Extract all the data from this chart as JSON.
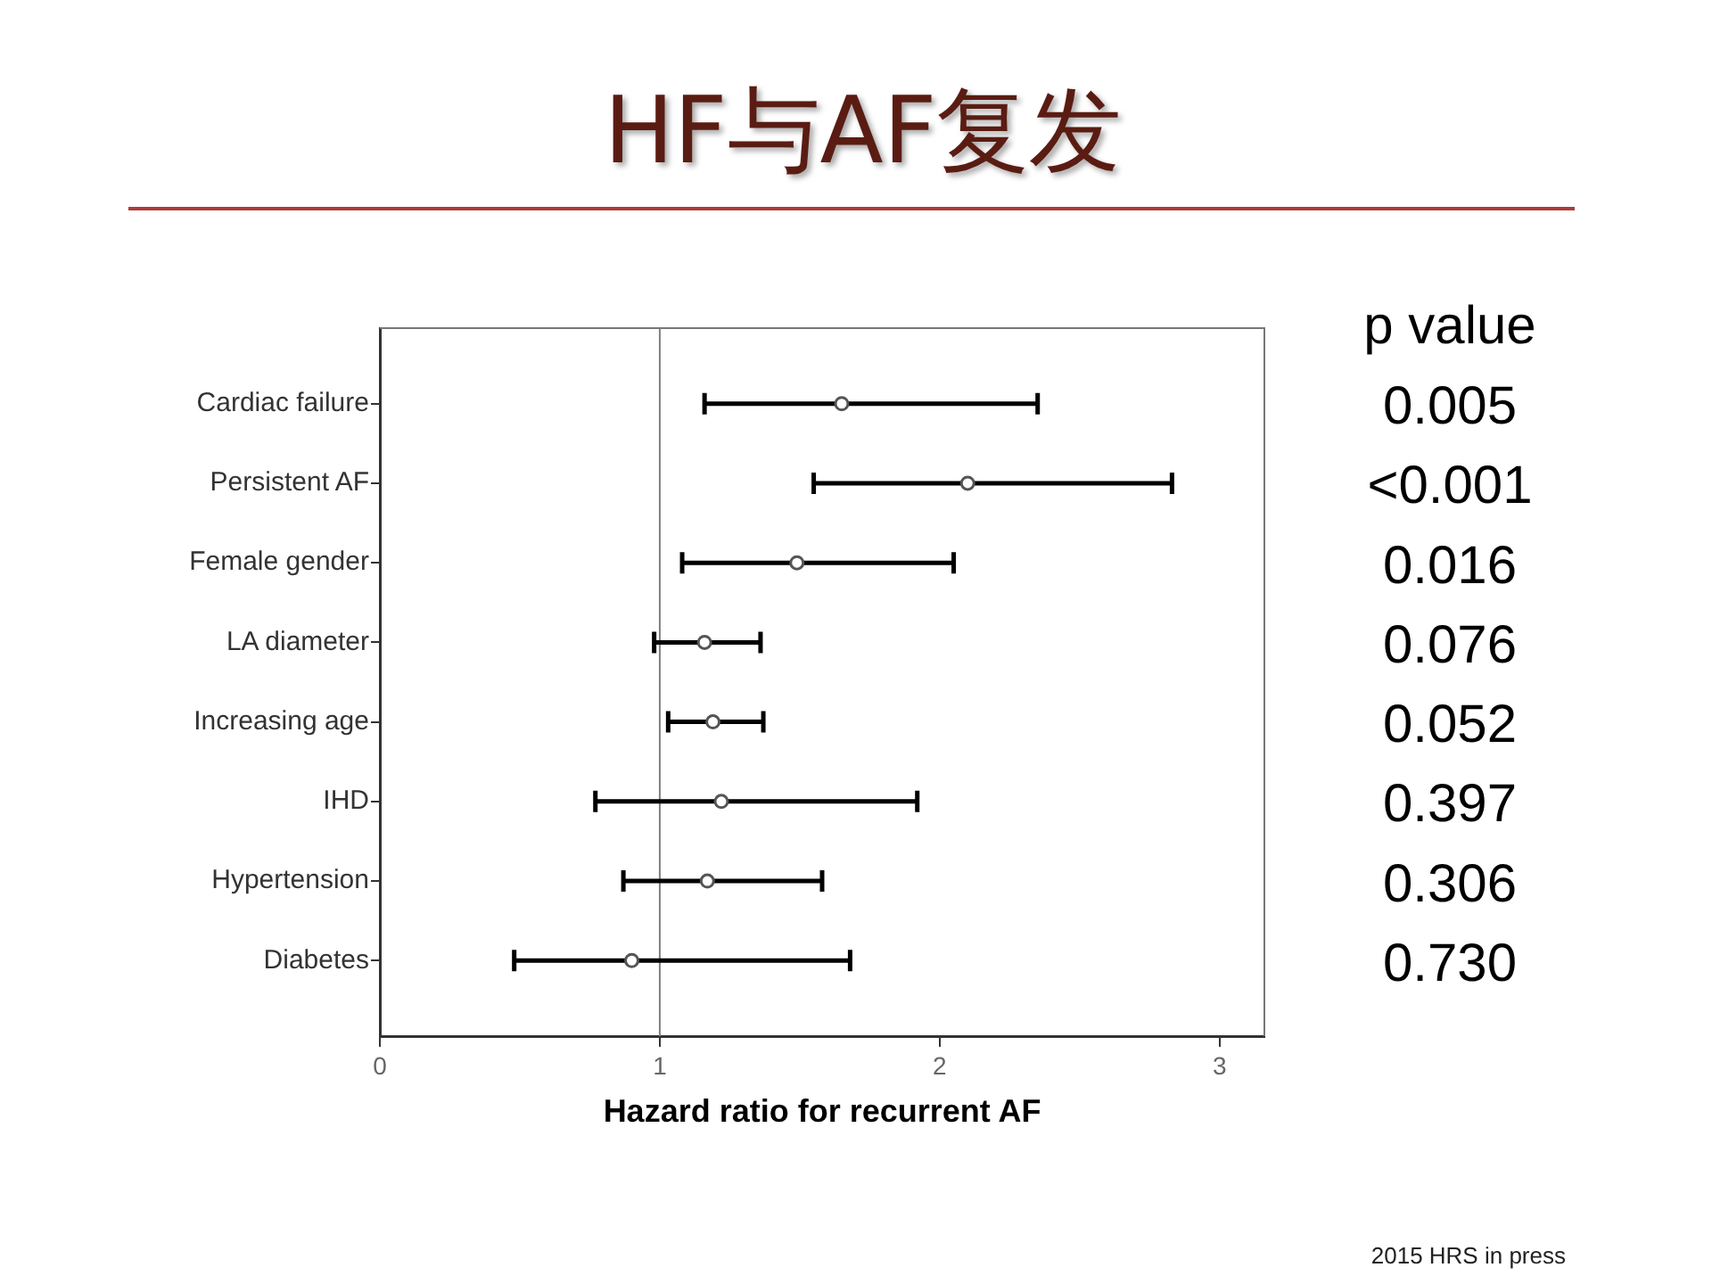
{
  "chart_data": {
    "type": "scatter",
    "orientation": "horizontal",
    "title": "HF与AF复发",
    "xlabel": "Hazard ratio for recurrent AF",
    "categories": [
      "Cardiac failure",
      "Persistent AF",
      "Female gender",
      "LA diameter",
      "Increasing age",
      "IHD",
      "Hypertension",
      "Diabetes"
    ],
    "values": [
      1.65,
      2.1,
      1.49,
      1.16,
      1.19,
      1.22,
      1.17,
      0.9
    ],
    "errors": [
      [
        1.16,
        2.35
      ],
      [
        1.55,
        2.83
      ],
      [
        1.08,
        2.05
      ],
      [
        0.98,
        1.36
      ],
      [
        1.03,
        1.37
      ],
      [
        0.77,
        1.92
      ],
      [
        0.87,
        1.58
      ],
      [
        0.48,
        1.68
      ]
    ],
    "color": "#555555",
    "marker": "circle",
    "xlim": [
      0,
      3.16
    ],
    "xticks": [
      0,
      1,
      2,
      3
    ],
    "ref_lines": [
      {
        "axis": "x",
        "value": 1,
        "color": "#808080"
      }
    ],
    "annotations": [
      "p value",
      "0.005",
      "<0.001",
      "0.016",
      "0.076",
      "0.052",
      "0.397",
      "0.306",
      "0.730",
      "2015 HRS in press"
    ]
  }
}
